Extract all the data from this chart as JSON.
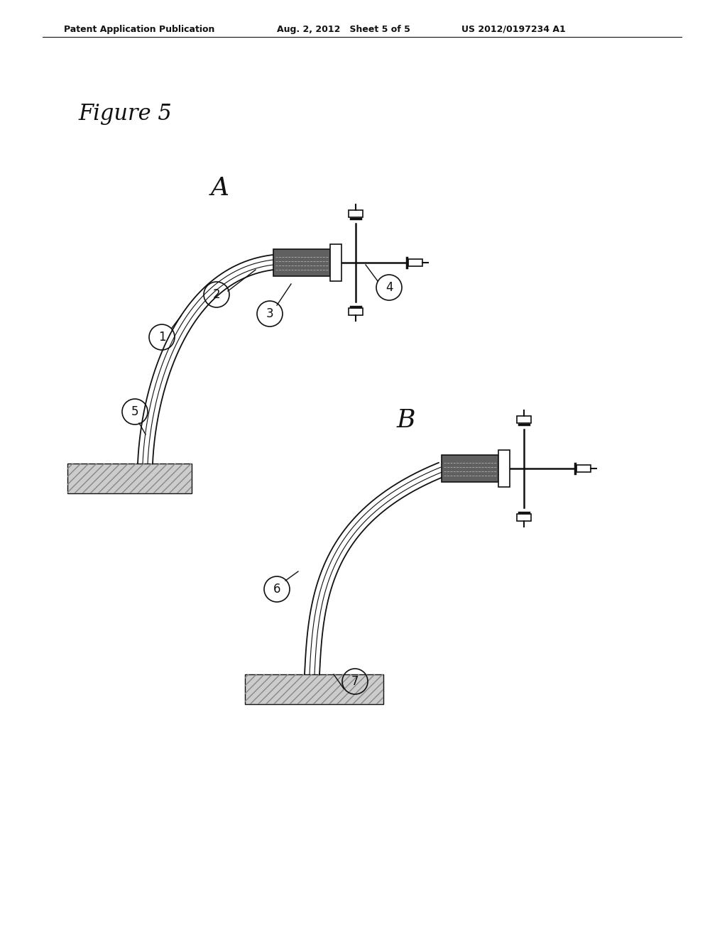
{
  "bg_color": "#ffffff",
  "header_left": "Patent Application Publication",
  "header_mid": "Aug. 2, 2012   Sheet 5 of 5",
  "header_right": "US 2012/0197234 A1",
  "figure_label": "Figure 5",
  "label_A": "A",
  "label_B": "B",
  "line_color": "#111111",
  "dark_fill": "#555555",
  "tissue_color": "#cccccc"
}
